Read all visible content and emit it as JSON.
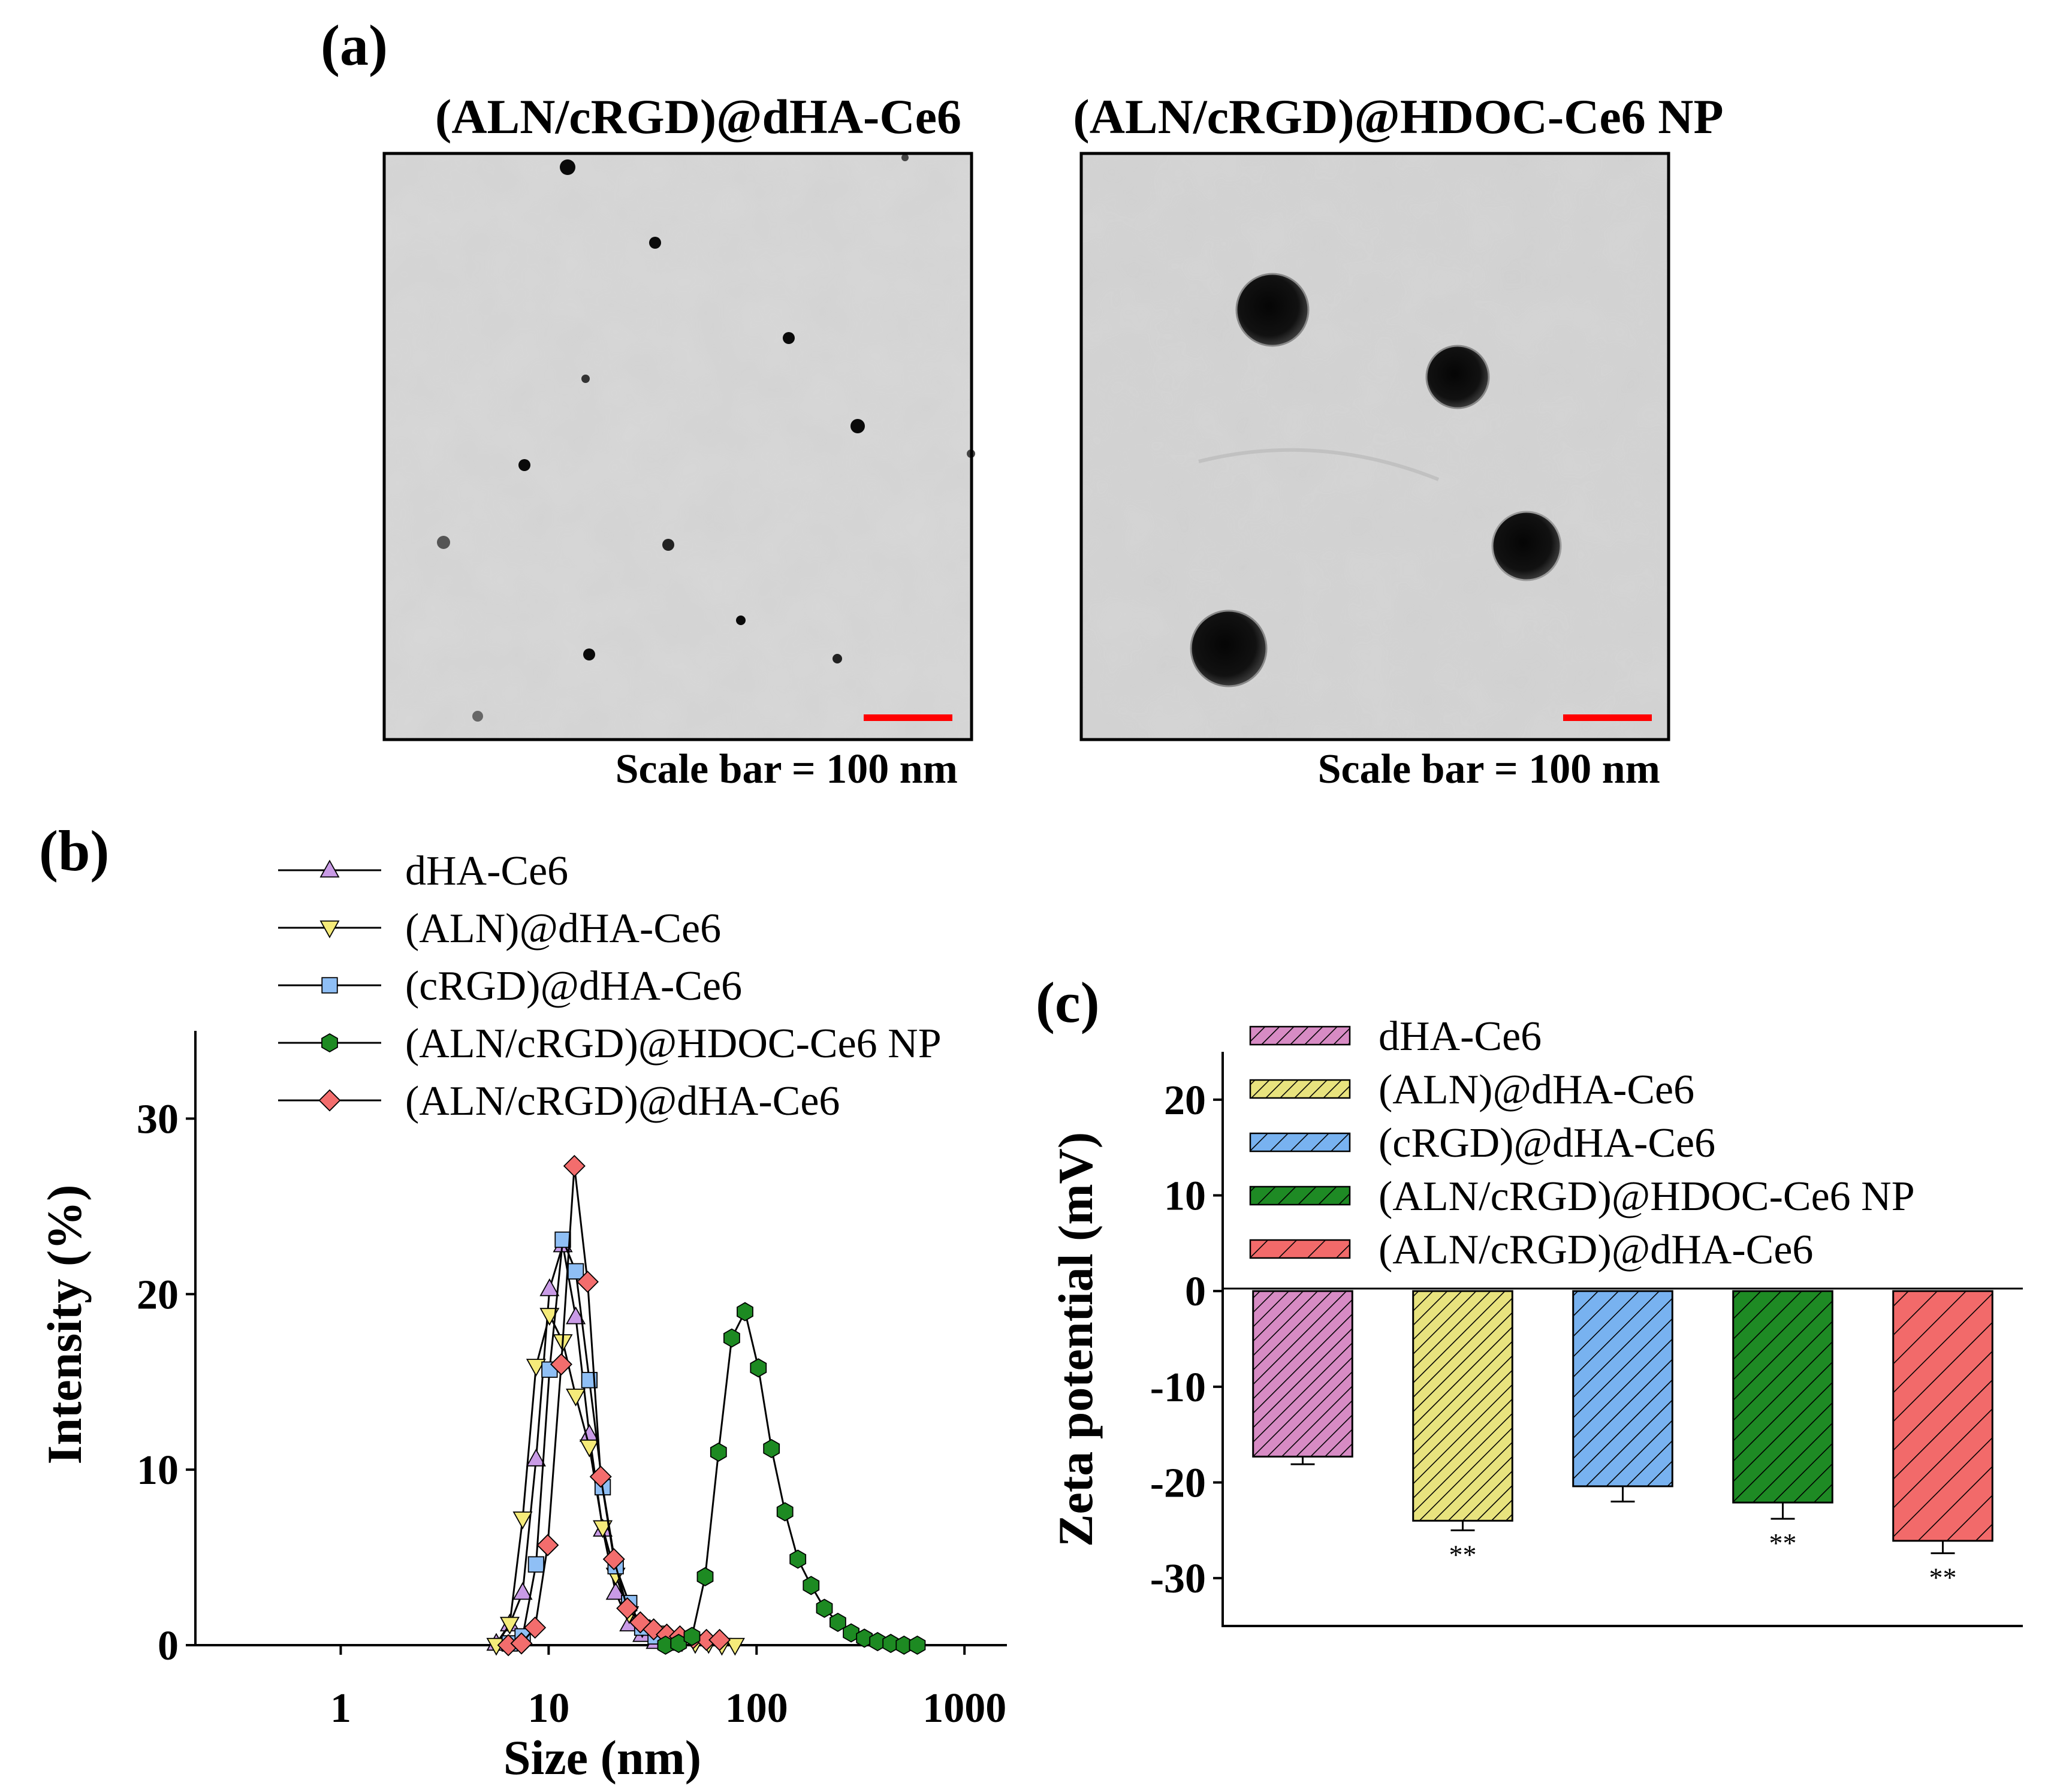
{
  "panel_a": {
    "label": "(a)",
    "left_title": "(ALN/cRGD)@dHA-Ce6",
    "right_title": "(ALN/cRGD)@HDOC-Ce6 NP",
    "left_scale": "Scale bar = 100 nm",
    "right_scale": "Scale bar = 100 nm",
    "scale_bar_color": "#ff0000"
  },
  "chart_data": [
    {
      "id": "b",
      "panel_label": "(b)",
      "type": "line",
      "xscale": "log",
      "xlabel": "Size (nm)",
      "ylabel": "Intensity (%)",
      "xlim": [
        0.2,
        1600
      ],
      "ylim": [
        0,
        35
      ],
      "xticks": [
        1,
        10,
        100,
        1000
      ],
      "xtick_labels": [
        "1",
        "10",
        "100",
        "1000"
      ],
      "yticks": [
        0,
        10,
        20,
        30
      ],
      "ytick_labels": [
        "0",
        "10",
        "20",
        "30"
      ],
      "legend_position": "top",
      "series": [
        {
          "name": "dHA-Ce6",
          "marker": "triangle-up",
          "color": "#c99be6",
          "x": [
            5.6,
            6.5,
            7.5,
            8.7,
            10.1,
            11.7,
            13.5,
            15.7,
            18.2,
            21.0,
            24.4,
            28.2,
            32.7,
            37.8
          ],
          "y": [
            0.1,
            1.2,
            3.0,
            10.6,
            20.3,
            22.8,
            18.7,
            12.0,
            6.6,
            3.0,
            1.2,
            0.6,
            0.2,
            0.1
          ]
        },
        {
          "name": "(ALN)@dHA-Ce6",
          "marker": "triangle-down",
          "color": "#f5eb7a",
          "x": [
            5.6,
            6.5,
            7.5,
            8.7,
            10.1,
            11.7,
            13.5,
            15.7,
            18.2,
            21.0,
            24.4,
            28.2,
            32.7,
            37.8,
            43.8,
            50.7,
            58.8,
            68.1,
            78.8
          ],
          "y": [
            0.0,
            1.2,
            7.2,
            15.9,
            18.8,
            17.3,
            14.2,
            11.3,
            6.7,
            4.0,
            1.8,
            1.0,
            0.7,
            0.4,
            0.2,
            0.1,
            0.1,
            0.0,
            0.0
          ]
        },
        {
          "name": "(cRGD)@dHA-Ce6",
          "marker": "square",
          "color": "#8fbff5",
          "x": [
            6.5,
            7.5,
            8.7,
            10.1,
            11.7,
            13.5,
            15.7,
            18.2,
            21.0,
            24.4,
            28.2,
            32.7,
            37.8
          ],
          "y": [
            0.1,
            0.5,
            4.6,
            15.7,
            23.1,
            21.3,
            15.1,
            9.0,
            4.5,
            2.4,
            1.0,
            0.5,
            0.2
          ]
        },
        {
          "name": "(ALN/cRGD)@HDOC-Ce6 NP",
          "marker": "hexagon",
          "color": "#1d8a22",
          "x": [
            36.5,
            42.2,
            48.9,
            56.6,
            65.6,
            76.0,
            88.0,
            102,
            118,
            137,
            158,
            183,
            212,
            246,
            285,
            330,
            382,
            442,
            512,
            593
          ],
          "y": [
            0.0,
            0.1,
            0.5,
            3.9,
            11.0,
            17.5,
            19.0,
            15.8,
            11.2,
            7.6,
            4.9,
            3.4,
            2.1,
            1.3,
            0.7,
            0.4,
            0.2,
            0.1,
            0.0,
            0.0
          ]
        },
        {
          "name": "(ALN/cRGD)@dHA-Ce6",
          "marker": "diamond",
          "color": "#f36d6d",
          "x": [
            6.4,
            7.4,
            8.6,
            9.9,
            11.5,
            13.3,
            15.4,
            17.8,
            20.6,
            23.9,
            27.6,
            32.0,
            37.0,
            42.8,
            49.6,
            57.4,
            66.4
          ],
          "y": [
            0.0,
            0.1,
            1.0,
            5.7,
            16.0,
            27.3,
            20.7,
            9.6,
            4.9,
            2.1,
            1.3,
            0.9,
            0.6,
            0.5,
            0.4,
            0.3,
            0.3
          ]
        }
      ]
    },
    {
      "id": "c",
      "panel_label": "(c)",
      "type": "bar",
      "ylabel": "Zeta potential (mV)",
      "ylim": [
        -35,
        25
      ],
      "yticks": [
        20,
        10,
        0,
        -10,
        -20,
        -30
      ],
      "ytick_labels": [
        "20",
        "10",
        "0",
        "-10",
        "-20",
        "-30"
      ],
      "legend_position": "top-left",
      "categories": [
        "dHA-Ce6",
        "(ALN)@dHA-Ce6",
        "(cRGD)@dHA-Ce6",
        "(ALN/cRGD)@HDOC-Ce6 NP",
        "(ALN/cRGD)@dHA-Ce6"
      ],
      "values": [
        -17.3,
        -24.0,
        -20.4,
        -22.1,
        -26.1
      ],
      "errors": [
        0.8,
        1.0,
        1.6,
        1.7,
        1.3
      ],
      "significance": [
        "",
        "**",
        "",
        "**",
        "**"
      ],
      "colors": [
        "#d78bc4",
        "#e8e37e",
        "#78b2f0",
        "#1e8a24",
        "#f26a6a"
      ],
      "hatch": [
        "dense",
        "dense",
        "medium",
        "medium",
        "sparse"
      ]
    }
  ]
}
